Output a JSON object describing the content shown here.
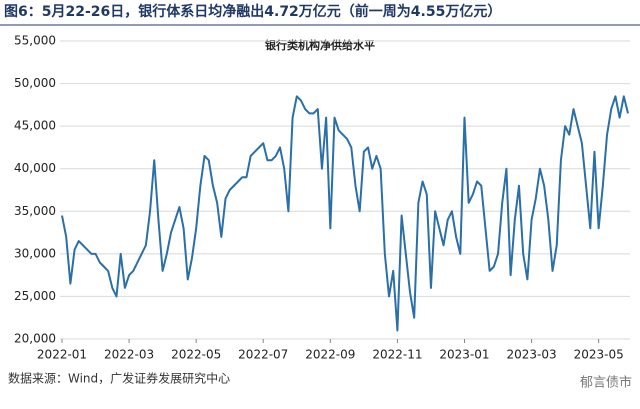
{
  "header": "图6：5月22-26日，银行体系日均净融出4.72万亿元（前一周为4.55万亿元）",
  "source": "数据来源：Wind，广发证券发展研究中心",
  "watermark": "郁言债市",
  "chart_data": {
    "type": "line",
    "title": "银行类机构净供给水平",
    "color": "#2a6fa8",
    "grid": true,
    "ylim": [
      20000,
      55000
    ],
    "yticks": [
      {
        "value": 20000,
        "label": "20,000"
      },
      {
        "value": 25000,
        "label": "25,000"
      },
      {
        "value": 30000,
        "label": "30,000"
      },
      {
        "value": 35000,
        "label": "35,000"
      },
      {
        "value": 40000,
        "label": "40,000"
      },
      {
        "value": 45000,
        "label": "45,000"
      },
      {
        "value": 50000,
        "label": "50,000"
      },
      {
        "value": 55000,
        "label": "55,000"
      }
    ],
    "categories": [
      "2022-01",
      null,
      null,
      null,
      null,
      null,
      null,
      null,
      null,
      null,
      null,
      null,
      null,
      null,
      null,
      null,
      "2022-03",
      null,
      null,
      null,
      null,
      null,
      null,
      null,
      null,
      null,
      null,
      null,
      null,
      null,
      null,
      null,
      "2022-05",
      null,
      null,
      null,
      null,
      null,
      null,
      null,
      null,
      null,
      null,
      null,
      null,
      null,
      null,
      null,
      "2022-07",
      null,
      null,
      null,
      null,
      null,
      null,
      null,
      null,
      null,
      null,
      null,
      null,
      null,
      null,
      null,
      "2022-09",
      null,
      null,
      null,
      null,
      null,
      null,
      null,
      null,
      null,
      null,
      null,
      null,
      null,
      null,
      null,
      "2022-11",
      null,
      null,
      null,
      null,
      null,
      null,
      null,
      null,
      null,
      null,
      null,
      null,
      null,
      null,
      null,
      "2023-01",
      null,
      null,
      null,
      null,
      null,
      null,
      null,
      null,
      null,
      null,
      null,
      null,
      null,
      null,
      null,
      "2023-03",
      null,
      null,
      null,
      null,
      null,
      null,
      null,
      null,
      null,
      null,
      null,
      null,
      null,
      null,
      null,
      "2023-05",
      null,
      null,
      null,
      null,
      null,
      null,
      null
    ],
    "values": [
      34500,
      32000,
      26500,
      30500,
      31500,
      31000,
      30500,
      30000,
      30000,
      29000,
      28500,
      28000,
      26000,
      25000,
      30000,
      26000,
      27500,
      28000,
      29000,
      30000,
      31000,
      35000,
      41000,
      34000,
      28000,
      30000,
      32500,
      34000,
      35500,
      33000,
      27000,
      29500,
      33000,
      38000,
      41500,
      41000,
      38000,
      36000,
      32000,
      36500,
      37500,
      38000,
      38500,
      39000,
      39000,
      41500,
      42000,
      42500,
      43000,
      41000,
      41000,
      41500,
      42500,
      40000,
      35000,
      46000,
      48500,
      48000,
      47000,
      46500,
      46500,
      47000,
      40000,
      46000,
      33000,
      46000,
      44500,
      44000,
      43500,
      42500,
      38000,
      35000,
      42000,
      42500,
      40000,
      41500,
      40000,
      30000,
      25000,
      28000,
      21000,
      34500,
      30000,
      25500,
      22500,
      36000,
      38500,
      37000,
      26000,
      35000,
      33000,
      31000,
      34000,
      35000,
      32000,
      30000,
      46000,
      36000,
      37000,
      38500,
      38000,
      33000,
      28000,
      28500,
      30000,
      36000,
      40000,
      27500,
      34000,
      38000,
      30000,
      27000,
      34000,
      36500,
      40000,
      38000,
      34000,
      28000,
      31000,
      41000,
      45000,
      44000,
      47000,
      45000,
      43000,
      38000,
      33000,
      42000,
      33000,
      38000,
      44000,
      47000,
      48500,
      46000,
      48500,
      46500
    ]
  }
}
